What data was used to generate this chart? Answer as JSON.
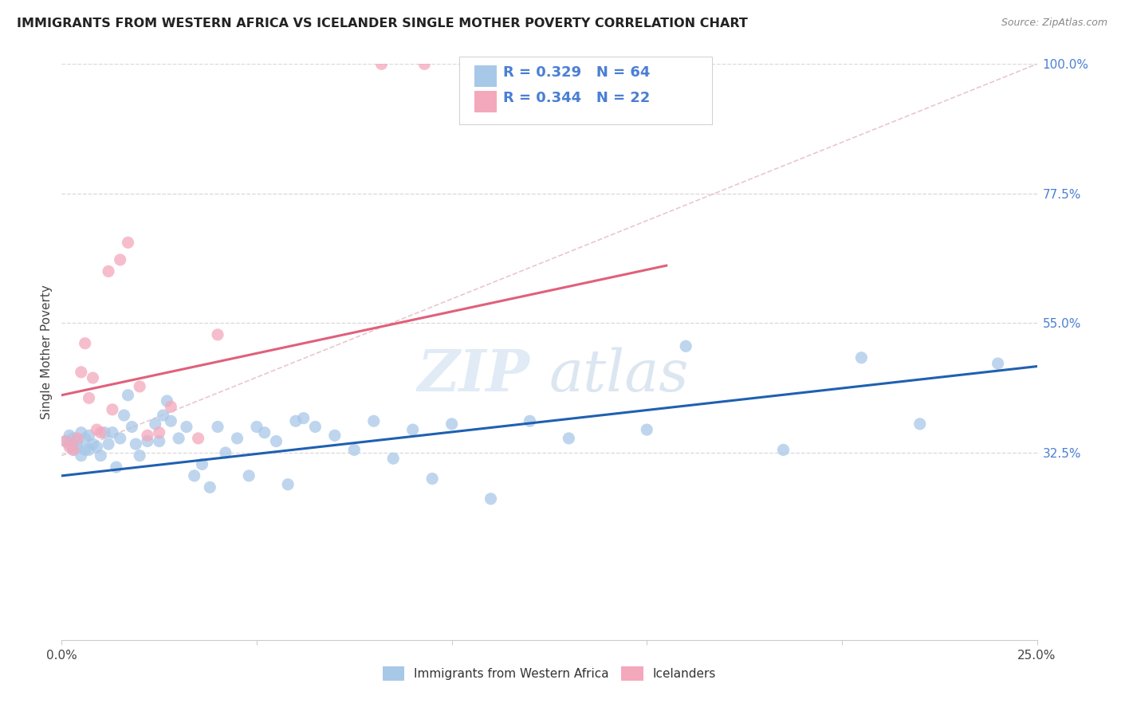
{
  "title": "IMMIGRANTS FROM WESTERN AFRICA VS ICELANDER SINGLE MOTHER POVERTY CORRELATION CHART",
  "source": "Source: ZipAtlas.com",
  "ylabel": "Single Mother Poverty",
  "x_min": 0.0,
  "x_max": 0.25,
  "y_min": 0.0,
  "y_max": 1.0,
  "x_ticks": [
    0.0,
    0.05,
    0.1,
    0.15,
    0.2,
    0.25
  ],
  "x_tick_labels": [
    "0.0%",
    "",
    "",
    "",
    "",
    "25.0%"
  ],
  "y_tick_labels_right": [
    "100.0%",
    "77.5%",
    "55.0%",
    "32.5%"
  ],
  "y_tick_vals_right": [
    1.0,
    0.775,
    0.55,
    0.325
  ],
  "blue_R": "0.329",
  "blue_N": "64",
  "pink_R": "0.344",
  "pink_N": "22",
  "blue_color": "#a8c8e8",
  "pink_color": "#f4a8bc",
  "blue_line_color": "#2060b0",
  "pink_line_color": "#e0607a",
  "dashed_line_color": "#c8c8cc",
  "watermark_zip": "ZIP",
  "watermark_atlas": "atlas",
  "blue_scatter_x": [
    0.001,
    0.002,
    0.002,
    0.003,
    0.003,
    0.004,
    0.004,
    0.005,
    0.005,
    0.006,
    0.006,
    0.007,
    0.007,
    0.008,
    0.009,
    0.01,
    0.011,
    0.012,
    0.013,
    0.014,
    0.015,
    0.016,
    0.017,
    0.018,
    0.019,
    0.02,
    0.022,
    0.024,
    0.025,
    0.026,
    0.027,
    0.028,
    0.03,
    0.032,
    0.034,
    0.036,
    0.038,
    0.04,
    0.042,
    0.045,
    0.048,
    0.05,
    0.052,
    0.055,
    0.058,
    0.06,
    0.062,
    0.065,
    0.07,
    0.075,
    0.08,
    0.085,
    0.09,
    0.095,
    0.1,
    0.11,
    0.12,
    0.13,
    0.15,
    0.16,
    0.185,
    0.205,
    0.22,
    0.24
  ],
  "blue_scatter_y": [
    0.345,
    0.34,
    0.355,
    0.33,
    0.35,
    0.345,
    0.335,
    0.32,
    0.36,
    0.33,
    0.35,
    0.355,
    0.33,
    0.34,
    0.335,
    0.32,
    0.36,
    0.34,
    0.36,
    0.3,
    0.35,
    0.39,
    0.425,
    0.37,
    0.34,
    0.32,
    0.345,
    0.375,
    0.345,
    0.39,
    0.415,
    0.38,
    0.35,
    0.37,
    0.285,
    0.305,
    0.265,
    0.37,
    0.325,
    0.35,
    0.285,
    0.37,
    0.36,
    0.345,
    0.27,
    0.38,
    0.385,
    0.37,
    0.355,
    0.33,
    0.38,
    0.315,
    0.365,
    0.28,
    0.375,
    0.245,
    0.38,
    0.35,
    0.365,
    0.51,
    0.33,
    0.49,
    0.375,
    0.48
  ],
  "pink_scatter_x": [
    0.001,
    0.002,
    0.003,
    0.004,
    0.005,
    0.006,
    0.007,
    0.008,
    0.009,
    0.01,
    0.012,
    0.013,
    0.015,
    0.017,
    0.02,
    0.022,
    0.025,
    0.028,
    0.035,
    0.04,
    0.082,
    0.093
  ],
  "pink_scatter_y": [
    0.345,
    0.335,
    0.33,
    0.35,
    0.465,
    0.515,
    0.42,
    0.455,
    0.365,
    0.36,
    0.64,
    0.4,
    0.66,
    0.69,
    0.44,
    0.355,
    0.36,
    0.405,
    0.35,
    0.53,
    1.0,
    1.0
  ],
  "blue_trendline_x": [
    0.0,
    0.25
  ],
  "blue_trendline_y": [
    0.285,
    0.475
  ],
  "pink_trendline_x": [
    0.0,
    0.155
  ],
  "pink_trendline_y": [
    0.425,
    0.65
  ],
  "dashed_trendline_x": [
    0.0,
    0.25
  ],
  "dashed_trendline_y": [
    0.32,
    1.0
  ],
  "legend_blue_label": "Immigrants from Western Africa",
  "legend_pink_label": "Icelanders",
  "grid_color": "#d8d8dc",
  "background_color": "#ffffff"
}
